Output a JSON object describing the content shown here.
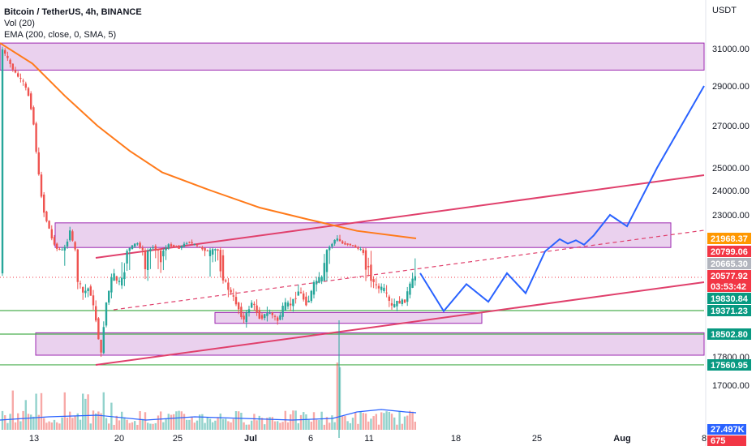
{
  "legend": {
    "title": "Bitcoin / TetherUS, 4h, BINANCE",
    "vol": "Vol (20)",
    "ema": "EMA (200, close, 0, SMA, 5)"
  },
  "chart_data": {
    "type": "candlestick",
    "currency_label": "USDT",
    "y_tick_labels": [
      "31000.00",
      "29000.00",
      "27000.00",
      "25000.00",
      "24000.00",
      "23000.00",
      "17800.00",
      "17000.00"
    ],
    "y_ticks": [
      31000,
      29000,
      27000,
      25000,
      24000,
      23000,
      17800,
      17000
    ],
    "x_tick_labels": [
      "13",
      "20",
      "25",
      "Jul",
      "6",
      "11",
      "18",
      "25",
      "Aug",
      "8"
    ],
    "price_badges": [
      {
        "label": "21968.37",
        "value": 21968.37,
        "color": "#ff9800"
      },
      {
        "label": "20799.06",
        "value": 20799.06,
        "color": "#f23645"
      },
      {
        "label": "20665.30",
        "value": 20665.3,
        "color": "#b2b5be"
      },
      {
        "label": "20577.92",
        "value": 20577.92,
        "color": "#f23645"
      },
      {
        "label": "03:53:42",
        "value": null,
        "color": "#f23645"
      },
      {
        "label": "19830.84",
        "value": 19830.84,
        "color": "#089981"
      },
      {
        "label": "19371.23",
        "value": 19371.23,
        "color": "#089981"
      },
      {
        "label": "18502.80",
        "value": 18502.8,
        "color": "#089981"
      },
      {
        "label": "17560.95",
        "value": 17560.95,
        "color": "#089981"
      }
    ],
    "volume_badges": [
      {
        "label": "27.497K",
        "color": "#2962ff"
      },
      {
        "label": "675",
        "color": "#f23645"
      }
    ],
    "zones": [
      {
        "name": "supply-zone",
        "price_top": 31300,
        "price_bottom": 29850
      },
      {
        "name": "resistance-zone",
        "price_top": 22650,
        "price_bottom": 21150
      },
      {
        "name": "mid-support-zone",
        "price_top": 19300,
        "price_bottom": 18900
      },
      {
        "name": "demand-zone",
        "price_top": 18550,
        "price_bottom": 17850
      }
    ],
    "support_levels": [
      19371.23,
      18502.8,
      17560.95
    ],
    "ema_200": [
      31300,
      30200,
      28500,
      27000,
      25800,
      24800,
      24000,
      23300,
      22800,
      22300,
      21968
    ],
    "projection_path": [
      20600,
      19350,
      20300,
      19700,
      20600,
      20000,
      20800,
      21900,
      21500,
      21800,
      21400,
      22100,
      23000,
      22500,
      25000,
      29000
    ],
    "colors": {
      "up": "#26a69a",
      "down": "#ef5350",
      "ema": "#ff7a1a",
      "trend": "#e0406c",
      "zone": "#9c27b0",
      "projection": "#2962ff",
      "support": "#4caf50"
    }
  }
}
